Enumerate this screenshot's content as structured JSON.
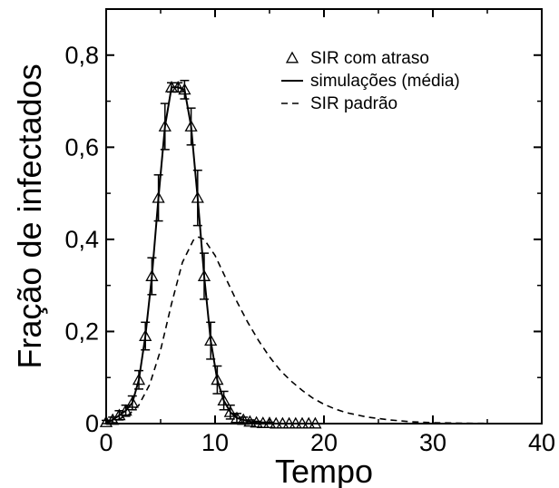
{
  "chart_data": {
    "type": "line",
    "title": "",
    "xlabel": "Tempo",
    "ylabel": "Fração de infectados",
    "xlim": [
      0,
      40
    ],
    "ylim": [
      0,
      0.9
    ],
    "x_ticks": [
      0,
      10,
      20,
      30,
      40
    ],
    "x_tick_labels": [
      "0",
      "10",
      "20",
      "30",
      "40"
    ],
    "y_ticks": [
      0,
      0.2,
      0.4,
      0.6,
      0.8
    ],
    "y_tick_labels": [
      "0",
      "0,2",
      "0,4",
      "0,6",
      "0,8"
    ],
    "grid": false,
    "legend_position": "top-right",
    "series": [
      {
        "name": "SIR com atraso",
        "style": "triangle-markers",
        "x": [
          0.0,
          0.6,
          1.2,
          1.8,
          2.4,
          3.0,
          3.6,
          4.2,
          4.8,
          5.4,
          6.0,
          6.6,
          7.2,
          7.8,
          8.4,
          9.0,
          9.6,
          10.2,
          10.8,
          11.4,
          12.0,
          12.6,
          13.2,
          13.8,
          14.4,
          15.0,
          15.6,
          16.2,
          16.8,
          17.4,
          18.0,
          18.6,
          19.2
        ],
        "y": [
          0.003,
          0.008,
          0.018,
          0.028,
          0.045,
          0.095,
          0.19,
          0.32,
          0.49,
          0.645,
          0.73,
          0.73,
          0.725,
          0.645,
          0.49,
          0.32,
          0.18,
          0.095,
          0.05,
          0.025,
          0.012,
          0.008,
          0.004,
          0.002,
          0.001,
          0.001,
          0.0,
          0.0,
          0.0,
          0.0,
          0.0,
          0.0,
          0.0
        ]
      },
      {
        "name": "simulações (média)",
        "style": "solid-line-errorbars",
        "x": [
          0.0,
          0.6,
          1.2,
          1.8,
          2.4,
          3.0,
          3.6,
          4.2,
          4.8,
          5.4,
          6.0,
          6.6,
          7.2,
          7.8,
          8.4,
          9.0,
          9.6,
          10.2,
          10.8,
          11.4,
          12.0,
          12.6,
          13.2,
          13.8,
          14.4,
          15.0,
          15.6,
          16.2,
          16.8,
          17.4,
          18.0,
          18.6,
          19.2
        ],
        "y": [
          0.003,
          0.008,
          0.018,
          0.028,
          0.045,
          0.095,
          0.19,
          0.32,
          0.49,
          0.645,
          0.73,
          0.73,
          0.725,
          0.645,
          0.49,
          0.32,
          0.18,
          0.095,
          0.05,
          0.025,
          0.012,
          0.008,
          0.004,
          0.002,
          0.001,
          0.001,
          0.0,
          0.0,
          0.0,
          0.0,
          0.0,
          0.0,
          0.0
        ],
        "errors": [
          0.004,
          0.006,
          0.01,
          0.012,
          0.015,
          0.02,
          0.03,
          0.04,
          0.05,
          0.05,
          0.01,
          0.01,
          0.02,
          0.04,
          0.06,
          0.05,
          0.04,
          0.03,
          0.02,
          0.015,
          0.01,
          0.006,
          0.004,
          0.003,
          0.002,
          0.002,
          0.0,
          0.0,
          0.0,
          0.0,
          0.0,
          0.0,
          0.0
        ]
      },
      {
        "name": "SIR padrão",
        "style": "dashed-line",
        "x": [
          0,
          1,
          2,
          3,
          4,
          5,
          6,
          7,
          8,
          8.5,
          9,
          10,
          11,
          12,
          13,
          14,
          15,
          16,
          17,
          18,
          19,
          20,
          21,
          22,
          24,
          26,
          28,
          30,
          33,
          36,
          40
        ],
        "y": [
          0.004,
          0.008,
          0.018,
          0.04,
          0.085,
          0.16,
          0.26,
          0.35,
          0.398,
          0.405,
          0.4,
          0.365,
          0.315,
          0.265,
          0.22,
          0.18,
          0.145,
          0.115,
          0.092,
          0.072,
          0.055,
          0.042,
          0.032,
          0.024,
          0.014,
          0.008,
          0.004,
          0.002,
          0.0008,
          0.0003,
          0.0001
        ]
      }
    ]
  }
}
